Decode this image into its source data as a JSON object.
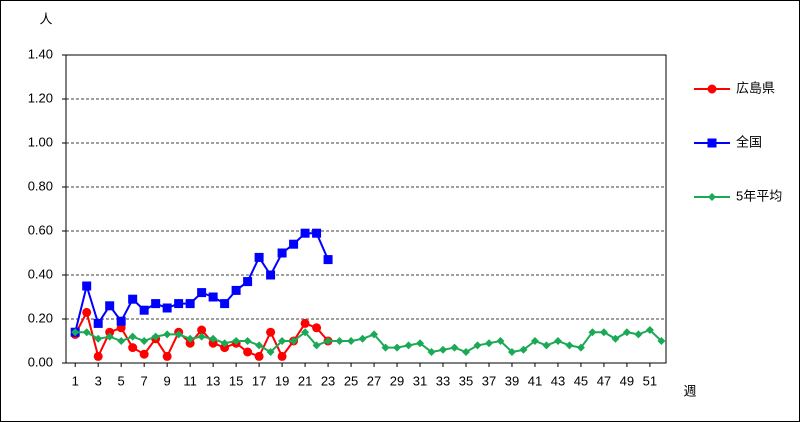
{
  "chart_data": {
    "type": "line",
    "y_label": "人",
    "x_label": "週",
    "x": [
      1,
      2,
      3,
      4,
      5,
      6,
      7,
      8,
      9,
      10,
      11,
      12,
      13,
      14,
      15,
      16,
      17,
      18,
      19,
      20,
      21,
      22,
      23,
      24,
      25,
      26,
      27,
      28,
      29,
      30,
      31,
      32,
      33,
      34,
      35,
      36,
      37,
      38,
      39,
      40,
      41,
      42,
      43,
      44,
      45,
      46,
      47,
      48,
      49,
      50,
      51,
      52
    ],
    "xlim": [
      0.2,
      52.4
    ],
    "xticks": [
      1,
      3,
      5,
      7,
      9,
      11,
      13,
      15,
      17,
      19,
      21,
      23,
      25,
      27,
      29,
      31,
      33,
      35,
      37,
      39,
      41,
      43,
      45,
      47,
      49,
      51
    ],
    "ylim": [
      0,
      1.4
    ],
    "yticks": [
      {
        "value": 0,
        "label": "0.00"
      },
      {
        "value": 0.2,
        "label": "0.20"
      },
      {
        "value": 0.4,
        "label": "0.40"
      },
      {
        "value": 0.6,
        "label": "0.60"
      },
      {
        "value": 0.8,
        "label": "0.80"
      },
      {
        "value": 1.0,
        "label": "1.00"
      },
      {
        "value": 1.2,
        "label": "1.20"
      },
      {
        "value": 1.4,
        "label": "1.40"
      }
    ],
    "grid": true,
    "legend": "right",
    "series": [
      {
        "name": "広島県",
        "color": "#ff0000",
        "marker": "circle",
        "values": [
          0.13,
          0.23,
          0.03,
          0.14,
          0.16,
          0.07,
          0.04,
          0.11,
          0.03,
          0.14,
          0.09,
          0.15,
          0.09,
          0.07,
          0.09,
          0.05,
          0.03,
          0.14,
          0.03,
          0.1,
          0.18,
          0.16,
          0.1,
          null,
          null,
          null,
          null,
          null,
          null,
          null,
          null,
          null,
          null,
          null,
          null,
          null,
          null,
          null,
          null,
          null,
          null,
          null,
          null,
          null,
          null,
          null,
          null,
          null,
          null,
          null,
          null,
          null
        ]
      },
      {
        "name": "全国",
        "color": "#0000ff",
        "marker": "square",
        "values": [
          0.14,
          0.35,
          0.18,
          0.26,
          0.19,
          0.29,
          0.24,
          0.27,
          0.25,
          0.27,
          0.27,
          0.32,
          0.3,
          0.27,
          0.33,
          0.37,
          0.48,
          0.4,
          0.5,
          0.54,
          0.59,
          0.59,
          0.47,
          null,
          null,
          null,
          null,
          null,
          null,
          null,
          null,
          null,
          null,
          null,
          null,
          null,
          null,
          null,
          null,
          null,
          null,
          null,
          null,
          null,
          null,
          null,
          null,
          null,
          null,
          null,
          null,
          null
        ]
      },
      {
        "name": "5年平均",
        "color": "#1aaa55",
        "marker": "diamond",
        "values": [
          0.14,
          0.14,
          0.11,
          0.12,
          0.1,
          0.12,
          0.1,
          0.12,
          0.13,
          0.13,
          0.11,
          0.12,
          0.11,
          0.09,
          0.1,
          0.1,
          0.08,
          0.05,
          0.1,
          0.1,
          0.14,
          0.08,
          0.1,
          0.1,
          0.1,
          0.11,
          0.13,
          0.07,
          0.07,
          0.08,
          0.09,
          0.05,
          0.06,
          0.07,
          0.05,
          0.08,
          0.09,
          0.1,
          0.05,
          0.06,
          0.1,
          0.08,
          0.1,
          0.08,
          0.07,
          0.14,
          0.14,
          0.11,
          0.14,
          0.13,
          0.15,
          0.1
        ]
      }
    ]
  }
}
